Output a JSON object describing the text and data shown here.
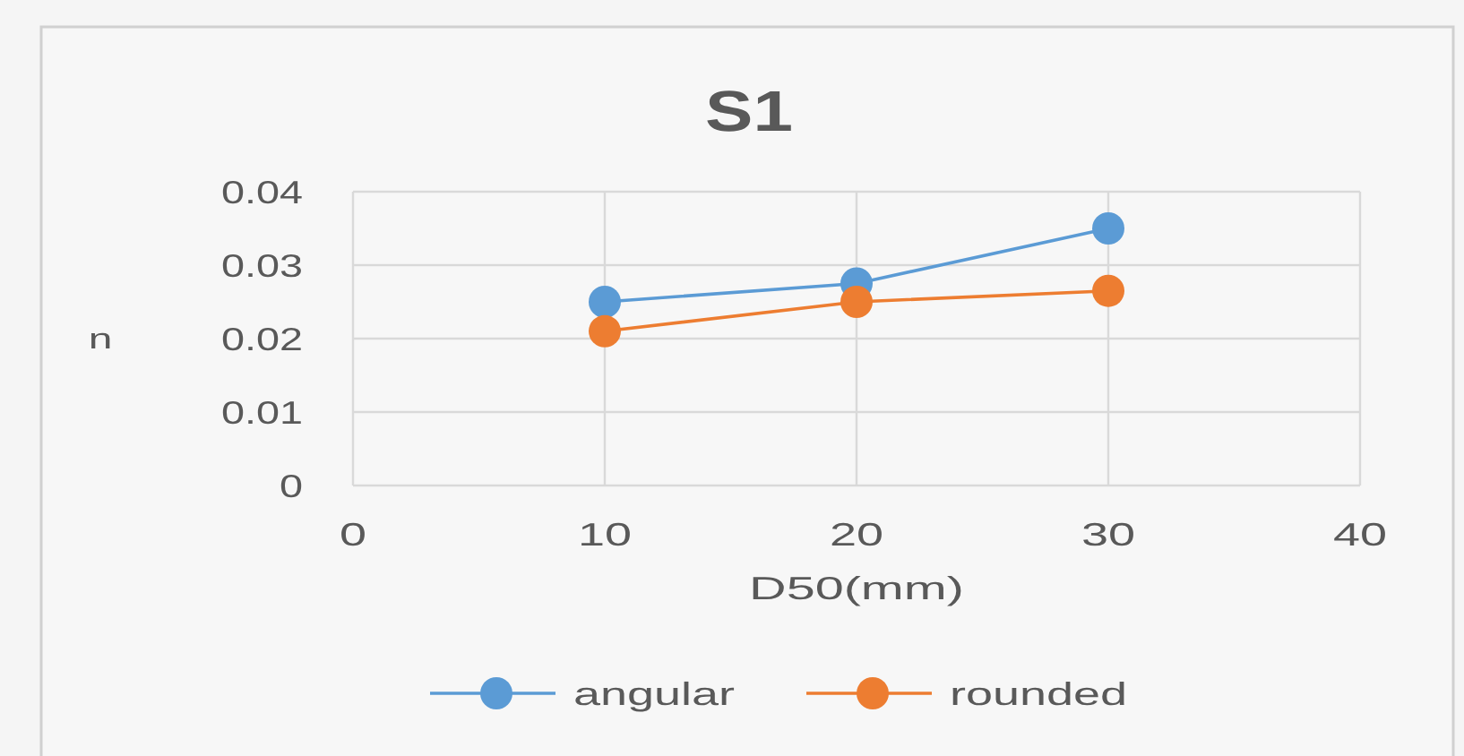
{
  "chart_data": {
    "type": "line",
    "title": "S1",
    "xlabel": "D50(mm)",
    "ylabel": "n",
    "x": [
      10,
      20,
      30
    ],
    "series": [
      {
        "name": "angular",
        "color": "#5b9bd5",
        "values": [
          0.025,
          0.0275,
          0.035
        ]
      },
      {
        "name": "rounded",
        "color": "#ed7d31",
        "values": [
          0.021,
          0.025,
          0.0265
        ]
      }
    ],
    "xlim": [
      0,
      40
    ],
    "xticks": [
      0,
      10,
      20,
      30,
      40
    ],
    "ylim": [
      0,
      0.04
    ],
    "yticks": [
      0,
      0.01,
      0.02,
      0.03,
      0.04
    ],
    "grid": true,
    "legend": "bottom",
    "marker": "circle",
    "line_style": "solid"
  }
}
